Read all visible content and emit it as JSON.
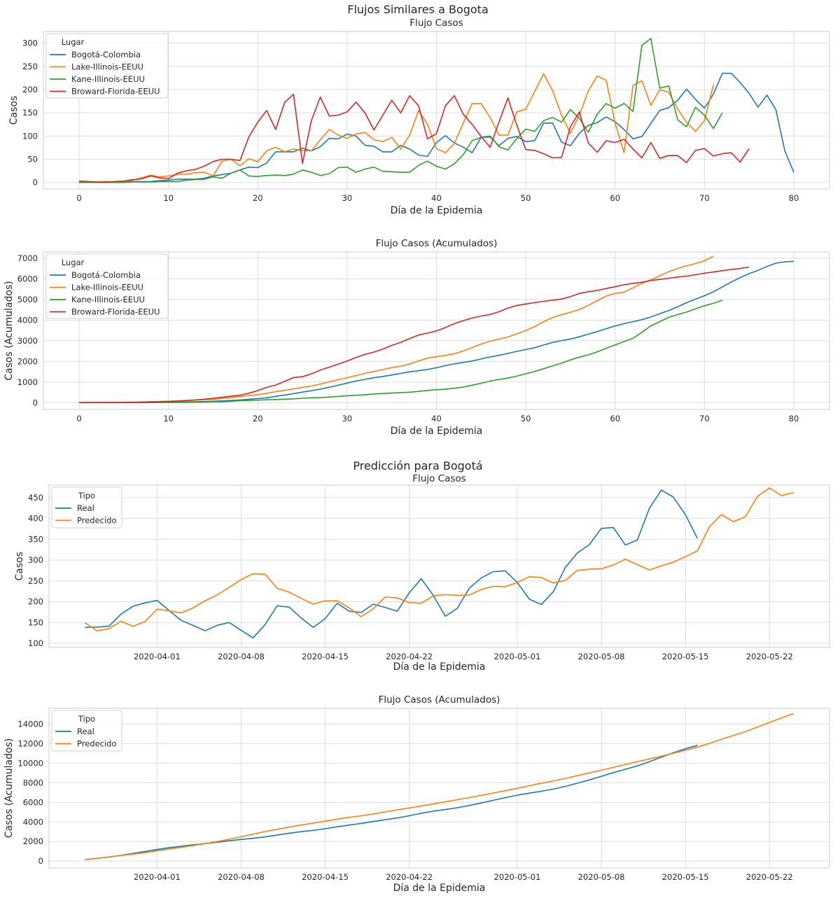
{
  "figure1": {
    "suptitle": "Flujos Similares a Bogota"
  },
  "figure2": {
    "suptitle": "Predicción para Bogotá"
  },
  "colors": {
    "blue": "#1f77b4",
    "orange": "#ff7f0e",
    "green": "#2ca02c",
    "red": "#d62728"
  },
  "chart_data": [
    {
      "type": "line",
      "title": "Flujo Casos",
      "xlabel": "Día de la Epidemia",
      "ylabel": "Casos",
      "xlim": [
        -4,
        84
      ],
      "ylim": [
        -14,
        325
      ],
      "xticks": [
        0,
        10,
        20,
        30,
        40,
        50,
        60,
        70,
        80
      ],
      "yticks": [
        0,
        50,
        100,
        150,
        200,
        250,
        300
      ],
      "grid": true,
      "legend": {
        "title": "Lugar",
        "placement": "top-left"
      },
      "series": [
        {
          "name": "Bogotá-Colombia",
          "color": "#1f77b4",
          "values": [
            2,
            1,
            1,
            1,
            1,
            2,
            2,
            2,
            2,
            4,
            5,
            7,
            7,
            7,
            9,
            14,
            17,
            20,
            27,
            33,
            32,
            42,
            66,
            66,
            66,
            74,
            68,
            77,
            95,
            94,
            104,
            100,
            80,
            78,
            66,
            66,
            80,
            72,
            59,
            56,
            86,
            101,
            85,
            76,
            64,
            97,
            98,
            79,
            95,
            99,
            88,
            90,
            128,
            128,
            87,
            79,
            106,
            123,
            129,
            141,
            131,
            114,
            94,
            99,
            127,
            155,
            161,
            177,
            201,
            179,
            160,
            190,
            235,
            235,
            215,
            192,
            162,
            188,
            157,
            68,
            22
          ]
        },
        {
          "name": "Lake-Illinois-EEUU",
          "color": "#ff7f0e",
          "values": [
            2,
            1,
            1,
            2,
            1,
            2,
            5,
            10,
            16,
            12,
            14,
            17,
            18,
            21,
            22,
            14,
            46,
            50,
            36,
            51,
            45,
            68,
            76,
            66,
            72,
            69,
            68,
            92,
            114,
            102,
            95,
            104,
            108,
            92,
            88,
            97,
            72,
            102,
            155,
            125,
            73,
            64,
            84,
            128,
            170,
            170,
            140,
            102,
            102,
            152,
            158,
            196,
            234,
            198,
            145,
            106,
            145,
            197,
            229,
            220,
            128,
            64,
            209,
            219,
            166,
            200,
            194,
            158,
            130,
            110,
            133,
            210
          ]
        },
        {
          "name": "Kane-Illinois-EEUU",
          "color": "#2ca02c",
          "values": [
            0,
            0,
            0,
            0,
            0,
            0,
            1,
            1,
            1,
            2,
            2,
            2,
            5,
            6,
            7,
            12,
            9,
            20,
            27,
            14,
            13,
            15,
            16,
            15,
            18,
            27,
            22,
            15,
            19,
            32,
            33,
            22,
            29,
            33,
            24,
            23,
            22,
            22,
            37,
            46,
            35,
            29,
            40,
            60,
            90,
            97,
            100,
            77,
            70,
            95,
            115,
            110,
            133,
            140,
            130,
            157,
            138,
            108,
            147,
            170,
            160,
            170,
            153,
            295,
            310,
            203,
            208,
            135,
            120,
            162,
            145,
            116,
            150
          ]
        },
        {
          "name": "Broward-Florida-EEUU",
          "color": "#d62728",
          "values": [
            3,
            2,
            1,
            1,
            2,
            3,
            6,
            8,
            14,
            10,
            8,
            20,
            25,
            28,
            35,
            45,
            50,
            50,
            47,
            98,
            130,
            155,
            114,
            172,
            190,
            41,
            133,
            184,
            143,
            145,
            152,
            173,
            150,
            113,
            145,
            177,
            150,
            187,
            165,
            94,
            105,
            165,
            187,
            147,
            125,
            99,
            76,
            130,
            182,
            123,
            71,
            69,
            62,
            53,
            54,
            120,
            152,
            85,
            65,
            90,
            86,
            93,
            72,
            53,
            86,
            52,
            58,
            58,
            43,
            69,
            73,
            57,
            62,
            64,
            44,
            73
          ]
        }
      ]
    },
    {
      "type": "line",
      "title": "Flujo Casos (Acumulados)",
      "xlabel": "Día de la Epidemia",
      "ylabel": "Casos (Acumulados)",
      "xlim": [
        -4,
        84
      ],
      "ylim": [
        -330,
        7300
      ],
      "xticks": [
        0,
        10,
        20,
        30,
        40,
        50,
        60,
        70,
        80
      ],
      "yticks": [
        0,
        1000,
        2000,
        3000,
        4000,
        5000,
        6000,
        7000
      ],
      "grid": true,
      "cumulative_of_chart": 0,
      "legend": {
        "title": "Lugar",
        "placement": "top-left"
      },
      "series": [
        {
          "name": "Bogotá-Colombia",
          "color": "#1f77b4"
        },
        {
          "name": "Lake-Illinois-EEUU",
          "color": "#ff7f0e"
        },
        {
          "name": "Kane-Illinois-EEUU",
          "color": "#2ca02c"
        },
        {
          "name": "Broward-Florida-EEUU",
          "color": "#d62728"
        }
      ]
    },
    {
      "type": "line",
      "title": "Flujo Casos",
      "xlabel": "Día de la Epidemia",
      "ylabel": "Casos",
      "x_start": "2020-03-26",
      "x_step_days": 1,
      "xlim": [
        "2020-03-23",
        "2020-05-27"
      ],
      "ylim": [
        90,
        480
      ],
      "xticks": [
        "2020-04-01",
        "2020-04-08",
        "2020-04-15",
        "2020-04-22",
        "2020-05-01",
        "2020-05-08",
        "2020-05-15",
        "2020-05-22"
      ],
      "yticks": [
        100,
        150,
        200,
        250,
        300,
        350,
        400,
        450
      ],
      "grid": true,
      "legend": {
        "title": "Tipo",
        "placement": "top-left"
      },
      "series": [
        {
          "name": "Real",
          "color": "#1f77b4",
          "values": [
            138,
            139,
            141,
            170,
            189,
            197,
            203,
            179,
            155,
            143,
            130,
            143,
            150,
            131,
            113,
            145,
            190,
            187,
            161,
            138,
            159,
            196,
            177,
            174,
            194,
            186,
            177,
            221,
            255,
            215,
            165,
            184,
            232,
            257,
            272,
            274,
            246,
            206,
            193,
            224,
            282,
            317,
            337,
            376,
            378,
            336,
            348,
            424,
            468,
            451,
            409,
            352
          ]
        },
        {
          "name": "Predecido",
          "color": "#ff7f0e",
          "values": [
            149,
            130,
            135,
            153,
            141,
            152,
            182,
            178,
            173,
            185,
            202,
            216,
            234,
            253,
            267,
            266,
            232,
            223,
            208,
            194,
            202,
            202,
            185,
            164,
            183,
            211,
            209,
            198,
            196,
            214,
            217,
            215,
            216,
            229,
            237,
            236,
            246,
            260,
            258,
            245,
            251,
            275,
            278,
            279,
            288,
            302,
            289,
            276,
            286,
            295,
            308,
            322,
            380,
            409,
            392,
            404,
            453,
            473,
            455,
            462
          ]
        }
      ]
    },
    {
      "type": "line",
      "title": "Flujo Casos (Acumulados)",
      "xlabel": "Día de la Epidemia",
      "ylabel": "Casos (Acumulados)",
      "x_start": "2020-03-26",
      "x_step_days": 1,
      "xlim": [
        "2020-03-23",
        "2020-05-27"
      ],
      "ylim": [
        -700,
        15600
      ],
      "xticks": [
        "2020-04-01",
        "2020-04-08",
        "2020-04-15",
        "2020-04-22",
        "2020-05-01",
        "2020-05-08",
        "2020-05-15",
        "2020-05-22"
      ],
      "yticks": [
        0,
        2000,
        4000,
        6000,
        8000,
        10000,
        12000,
        14000
      ],
      "grid": true,
      "cumulative_of_chart": 2,
      "legend": {
        "title": "Tipo",
        "placement": "top-left"
      },
      "series": [
        {
          "name": "Real",
          "color": "#1f77b4"
        },
        {
          "name": "Predecido",
          "color": "#ff7f0e"
        }
      ]
    }
  ]
}
